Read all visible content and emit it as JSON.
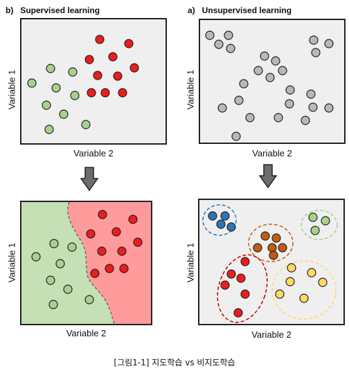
{
  "panels": {
    "top_left": {
      "label_letter": "b)",
      "title": "Supervised learning",
      "xlabel": "Variable 2",
      "ylabel": "Variable 1"
    },
    "top_right": {
      "label_letter": "a)",
      "title": "Unsupervised learning",
      "xlabel": "Variable 2",
      "ylabel": "Variable 1"
    },
    "bottom_left": {
      "xlabel": "Variable 2",
      "ylabel": "Variable 1"
    },
    "bottom_right": {
      "xlabel": "Variable 2",
      "ylabel": "Variable 1"
    }
  },
  "caption": "[그림1-1] 지도학습 vs 비지도학습",
  "colors": {
    "green_point": "#a9d18e",
    "red_point": "#ee1c1c",
    "gray_point": "#b8b8b8",
    "blue_point": "#2e75b6",
    "orange_point": "#c55a11",
    "yellow_point": "#ffd966",
    "green_region": "#c5e0b4",
    "red_region": "#ff9b9b",
    "panel_bg": "#efefef",
    "arrow": "#6d6d6d"
  },
  "icons": [
    "down-arrow-icon",
    "down-arrow-icon"
  ]
}
